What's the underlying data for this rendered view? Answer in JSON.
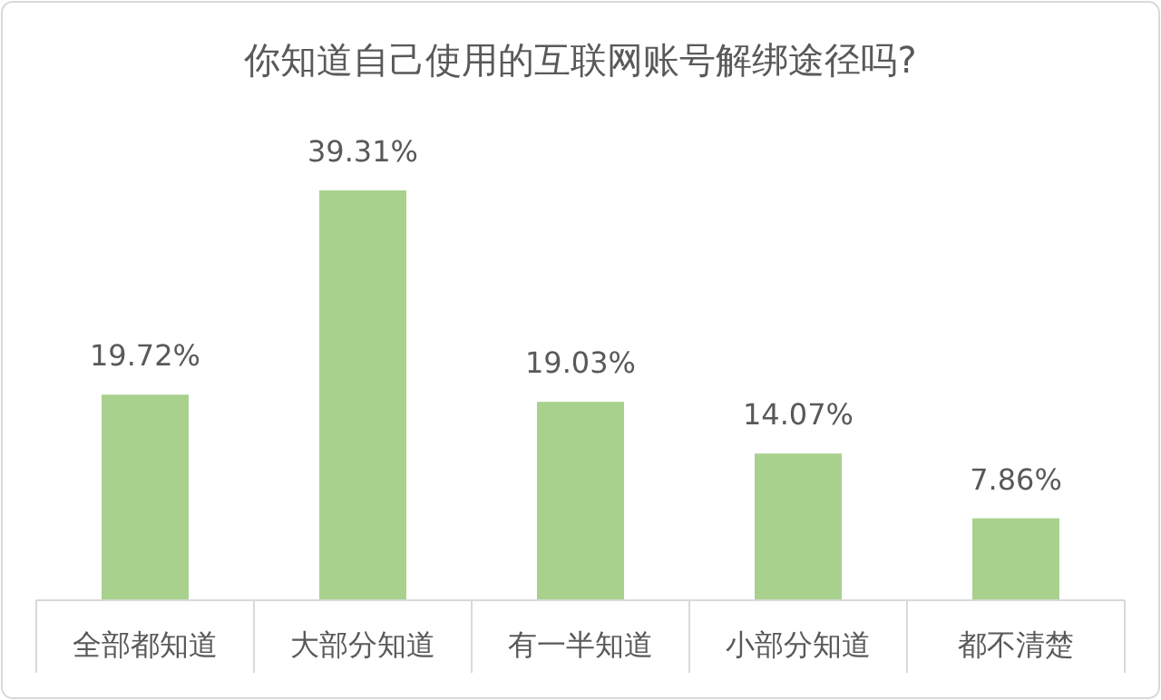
{
  "chart_data": {
    "type": "bar",
    "title": "你知道自己使用的互联网账号解绑途径吗?",
    "categories": [
      "全部都知道",
      "大部分知道",
      "有一半知道",
      "小部分知道",
      "都不清楚"
    ],
    "values": [
      19.72,
      39.31,
      19.03,
      14.07,
      7.86
    ],
    "value_labels": [
      "19.72%",
      "39.31%",
      "19.03%",
      "14.07%",
      "7.86%"
    ],
    "color": "#a9d18e"
  }
}
